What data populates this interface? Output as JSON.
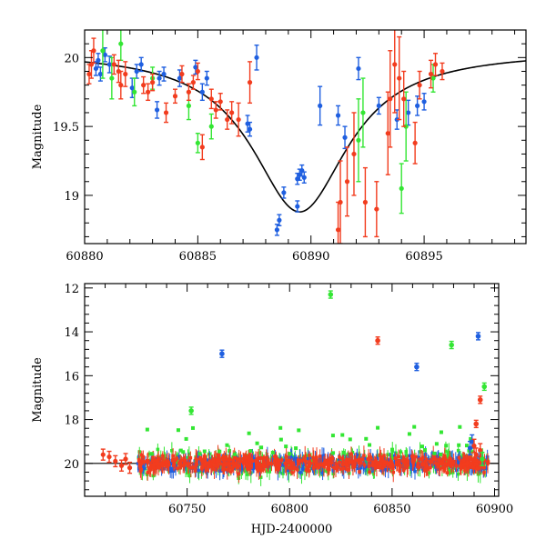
{
  "colors": {
    "blue": "#1f5fe0",
    "green": "#33e633",
    "red": "#f23c1e",
    "model": "#000000"
  },
  "chart_data": [
    {
      "type": "scatter",
      "title": "",
      "xlabel": "",
      "ylabel": "Magnitude",
      "xlim": [
        60880,
        60899.5
      ],
      "ylim": [
        18.65,
        20.2
      ],
      "y_inverted": true,
      "grid": false,
      "x_ticks": [
        60880,
        60885,
        60890,
        60895
      ],
      "y_ticks": [
        19,
        19.5,
        20
      ],
      "x_tick_labels": [
        "60880",
        "60885",
        "60890",
        "60895"
      ],
      "y_tick_labels": [
        "19",
        "19.5",
        "20"
      ],
      "model_curve": {
        "color": "black",
        "peak_x": 60889.5,
        "peak_mag": 18.88,
        "baseline_mag": 20.05
      },
      "series": [
        {
          "color": "blue",
          "points": [
            [
              60880.5,
              19.92,
              0.05
            ],
            [
              60880.6,
              19.98,
              0.05
            ],
            [
              60880.7,
              19.88,
              0.05
            ],
            [
              60880.9,
              20.02,
              0.05
            ],
            [
              60881.1,
              19.95,
              0.06
            ],
            [
              60882.1,
              19.78,
              0.07
            ],
            [
              60882.3,
              19.9,
              0.05
            ],
            [
              60882.5,
              19.95,
              0.05
            ],
            [
              60883.2,
              19.62,
              0.06
            ],
            [
              60883.3,
              19.85,
              0.05
            ],
            [
              60883.5,
              19.88,
              0.05
            ],
            [
              60884.2,
              19.85,
              0.06
            ],
            [
              60884.9,
              19.93,
              0.05
            ],
            [
              60885.2,
              19.75,
              0.06
            ],
            [
              60885.4,
              19.85,
              0.05
            ],
            [
              60887.2,
              19.52,
              0.06
            ],
            [
              60887.3,
              19.48,
              0.05
            ],
            [
              60887.6,
              20.0,
              0.09
            ],
            [
              60888.5,
              18.75,
              0.04
            ],
            [
              60888.6,
              18.82,
              0.04
            ],
            [
              60888.8,
              19.02,
              0.04
            ],
            [
              60889.4,
              19.12,
              0.04
            ],
            [
              60889.5,
              19.15,
              0.04
            ],
            [
              60889.6,
              19.18,
              0.04
            ],
            [
              60889.7,
              19.13,
              0.04
            ],
            [
              60889.4,
              18.92,
              0.04
            ],
            [
              60890.4,
              19.65,
              0.14
            ],
            [
              60891.2,
              19.58,
              0.07
            ],
            [
              60891.5,
              19.42,
              0.08
            ],
            [
              60892.1,
              19.92,
              0.08
            ],
            [
              60893.0,
              19.65,
              0.06
            ],
            [
              60893.8,
              19.55,
              0.07
            ],
            [
              60894.3,
              19.6,
              0.09
            ],
            [
              60894.7,
              19.65,
              0.07
            ],
            [
              60895.0,
              19.68,
              0.06
            ]
          ]
        },
        {
          "color": "green",
          "points": [
            [
              60880.8,
              20.05,
              0.2
            ],
            [
              60881.2,
              19.85,
              0.15
            ],
            [
              60881.6,
              20.1,
              0.12
            ],
            [
              60882.2,
              19.75,
              0.1
            ],
            [
              60883.0,
              19.85,
              0.08
            ],
            [
              60884.6,
              19.65,
              0.1
            ],
            [
              60885.0,
              19.38,
              0.07
            ],
            [
              60885.6,
              19.5,
              0.09
            ],
            [
              60892.1,
              19.4,
              0.3
            ],
            [
              60892.3,
              19.6,
              0.25
            ],
            [
              60894.0,
              19.05,
              0.18
            ],
            [
              60894.2,
              19.5,
              0.25
            ],
            [
              60895.4,
              19.85,
              0.1
            ]
          ]
        },
        {
          "color": "red",
          "points": [
            [
              60880.2,
              19.88,
              0.07
            ],
            [
              60880.3,
              19.95,
              0.1
            ],
            [
              60880.4,
              20.05,
              0.09
            ],
            [
              60881.3,
              19.95,
              0.07
            ],
            [
              60881.5,
              19.9,
              0.08
            ],
            [
              60881.6,
              19.8,
              0.1
            ],
            [
              60881.8,
              19.88,
              0.09
            ],
            [
              60882.6,
              19.8,
              0.06
            ],
            [
              60882.8,
              19.75,
              0.06
            ],
            [
              60883.0,
              19.82,
              0.06
            ],
            [
              60883.6,
              19.6,
              0.07
            ],
            [
              60884.0,
              19.72,
              0.05
            ],
            [
              60884.3,
              19.88,
              0.06
            ],
            [
              60884.6,
              19.75,
              0.06
            ],
            [
              60884.8,
              19.82,
              0.05
            ],
            [
              60885.0,
              19.9,
              0.06
            ],
            [
              60885.2,
              19.35,
              0.09
            ],
            [
              60885.6,
              19.7,
              0.07
            ],
            [
              60885.8,
              19.62,
              0.06
            ],
            [
              60886.0,
              19.68,
              0.06
            ],
            [
              60886.3,
              19.55,
              0.07
            ],
            [
              60886.5,
              19.6,
              0.08
            ],
            [
              60886.8,
              19.55,
              0.12
            ],
            [
              60887.3,
              19.82,
              0.15
            ],
            [
              60891.2,
              18.75,
              0.2
            ],
            [
              60891.3,
              18.95,
              0.3
            ],
            [
              60891.6,
              19.1,
              0.25
            ],
            [
              60891.9,
              19.3,
              0.3
            ],
            [
              60892.4,
              18.95,
              0.25
            ],
            [
              60892.9,
              18.9,
              0.2
            ],
            [
              60893.4,
              19.45,
              0.3
            ],
            [
              60893.5,
              19.7,
              0.35
            ],
            [
              60893.7,
              19.95,
              0.35
            ],
            [
              60893.9,
              19.85,
              0.3
            ],
            [
              60894.1,
              19.7,
              0.2
            ],
            [
              60894.6,
              19.38,
              0.15
            ],
            [
              60894.8,
              19.8,
              0.1
            ],
            [
              60895.3,
              19.88,
              0.1
            ],
            [
              60895.5,
              19.95,
              0.08
            ],
            [
              60895.8,
              19.9,
              0.06
            ]
          ]
        }
      ]
    },
    {
      "type": "scatter",
      "title": "",
      "xlabel": "HJD-2400000",
      "ylabel": "Magnitude",
      "xlim": [
        60700,
        60902
      ],
      "ylim": [
        21.5,
        11.8
      ],
      "y_inverted": true,
      "grid": false,
      "x_ticks": [
        60750,
        60800,
        60850,
        60900
      ],
      "y_ticks": [
        12,
        14,
        16,
        18,
        20
      ],
      "x_tick_labels": [
        "60750",
        "60800",
        "60850",
        "60900"
      ],
      "y_tick_labels": [
        "12",
        "14",
        "16",
        "18",
        "20"
      ],
      "baseline_mag": 20.0,
      "outliers": [
        {
          "color": "green",
          "x": 60820,
          "y": 12.3
        },
        {
          "color": "blue",
          "x": 60767,
          "y": 15.0
        },
        {
          "color": "red",
          "x": 60843,
          "y": 14.4
        },
        {
          "color": "blue",
          "x": 60862,
          "y": 15.6
        },
        {
          "color": "green",
          "x": 60879,
          "y": 14.6
        },
        {
          "color": "blue",
          "x": 60892,
          "y": 14.2
        },
        {
          "color": "green",
          "x": 60752,
          "y": 17.6
        },
        {
          "color": "green",
          "x": 60895,
          "y": 16.5
        },
        {
          "color": "red",
          "x": 60893,
          "y": 17.1
        },
        {
          "color": "red",
          "x": 60891,
          "y": 18.2
        }
      ]
    }
  ]
}
